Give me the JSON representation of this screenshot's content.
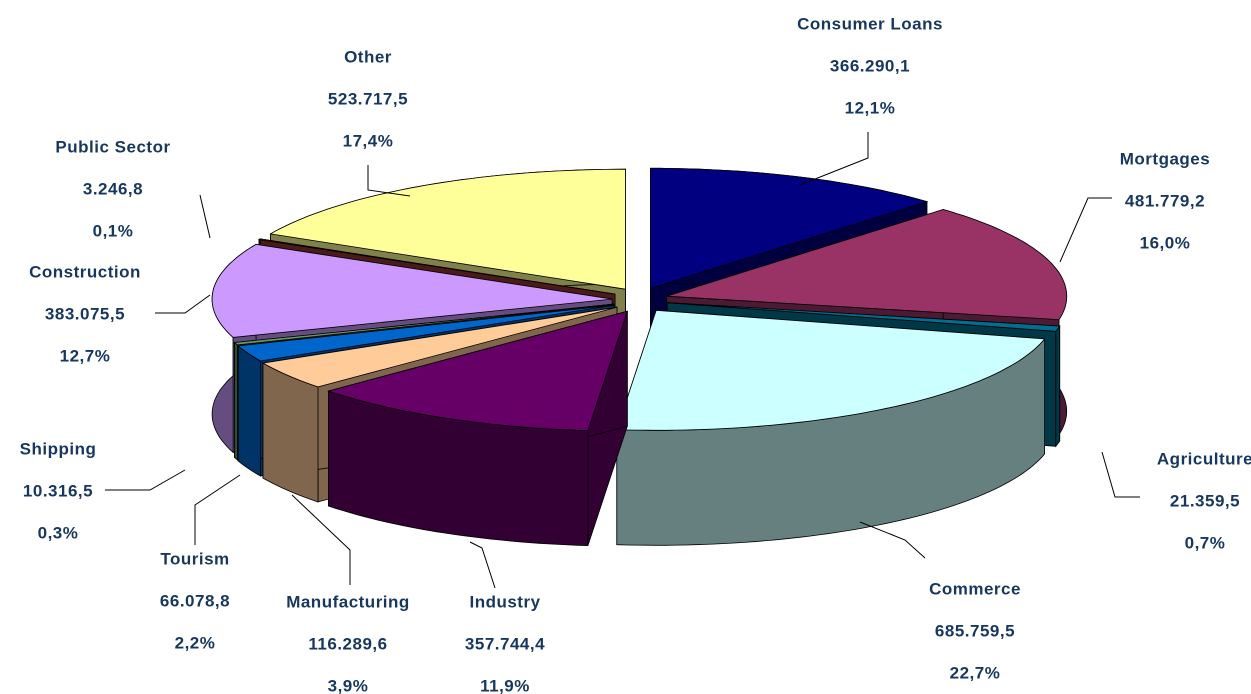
{
  "chart_data": {
    "type": "pie3d",
    "categories": [
      "Consumer Loans",
      "Mortgages",
      "Agriculture",
      "Commerce",
      "Industry",
      "Manufacturing",
      "Tourism",
      "Shipping",
      "Construction",
      "Public Sector",
      "Other"
    ],
    "values": [
      366290.1,
      481779.2,
      21359.5,
      685759.5,
      357744.4,
      116289.6,
      66078.8,
      10316.5,
      383075.5,
      3246.8,
      523717.5
    ],
    "value_labels": [
      "366.290,1",
      "481.779,2",
      "21.359,5",
      "685.759,5",
      "357.744,4",
      "116.289,6",
      "66.078,8",
      "10.316,5",
      "383.075,5",
      "3.246,8",
      "523.717,5"
    ],
    "percentages": [
      12.1,
      16.0,
      0.7,
      22.7,
      11.9,
      3.9,
      2.2,
      0.3,
      12.7,
      0.1,
      17.4
    ],
    "percentage_labels": [
      "12,1%",
      "16,0%",
      "0,7%",
      "22,7%",
      "11,9%",
      "3,9%",
      "2,2%",
      "0,3%",
      "12,7%",
      "0,1%",
      "17,4%"
    ],
    "colors": [
      "#000080",
      "#993366",
      "#006f8f",
      "#ccffff",
      "#660066",
      "#ffcc99",
      "#0066cc",
      "#669966",
      "#cc99ff",
      "#993333",
      "#ffff99"
    ]
  }
}
